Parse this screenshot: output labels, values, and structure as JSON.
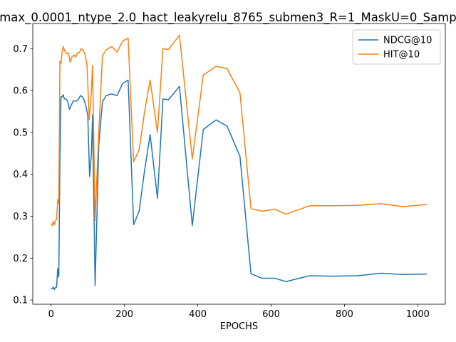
{
  "chart_data": {
    "type": "line",
    "title": "max_0.0001_ntype_2.0_hact_leakyrelu_8765_submen3_R=1_MaskU=0_Samp",
    "xlabel": "EPOCHS",
    "ylabel": "",
    "xlim": [
      -50,
      1075
    ],
    "ylim": [
      0.09,
      0.76
    ],
    "xticks": [
      0,
      200,
      400,
      600,
      800,
      1000
    ],
    "yticks": [
      0.1,
      0.2,
      0.3,
      0.4,
      0.5,
      0.6,
      0.7
    ],
    "grid": false,
    "legend": "top-right",
    "series": [
      {
        "name": "NDCG@10",
        "color": "#1f77b4",
        "points": [
          [
            0,
            0.128
          ],
          [
            3,
            0.127
          ],
          [
            6,
            0.131
          ],
          [
            9,
            0.125
          ],
          [
            12,
            0.13
          ],
          [
            15,
            0.131
          ],
          [
            18,
            0.175
          ],
          [
            21,
            0.155
          ],
          [
            24,
            0.44
          ],
          [
            27,
            0.585
          ],
          [
            30,
            0.585
          ],
          [
            33,
            0.59
          ],
          [
            36,
            0.58
          ],
          [
            40,
            0.58
          ],
          [
            45,
            0.575
          ],
          [
            50,
            0.555
          ],
          [
            55,
            0.565
          ],
          [
            60,
            0.575
          ],
          [
            65,
            0.575
          ],
          [
            70,
            0.575
          ],
          [
            75,
            0.58
          ],
          [
            80,
            0.588
          ],
          [
            85,
            0.585
          ],
          [
            90,
            0.578
          ],
          [
            95,
            0.563
          ],
          [
            100,
            0.54
          ],
          [
            105,
            0.395
          ],
          [
            110,
            0.45
          ],
          [
            113,
            0.542
          ],
          [
            120,
            0.135
          ],
          [
            130,
            0.47
          ],
          [
            140,
            0.573
          ],
          [
            150,
            0.588
          ],
          [
            165,
            0.592
          ],
          [
            180,
            0.588
          ],
          [
            195,
            0.617
          ],
          [
            210,
            0.625
          ],
          [
            225,
            0.28
          ],
          [
            240,
            0.312
          ],
          [
            255,
            0.41
          ],
          [
            270,
            0.495
          ],
          [
            290,
            0.343
          ],
          [
            305,
            0.58
          ],
          [
            320,
            0.578
          ],
          [
            350,
            0.61
          ],
          [
            385,
            0.278
          ],
          [
            415,
            0.507
          ],
          [
            450,
            0.53
          ],
          [
            480,
            0.515
          ],
          [
            515,
            0.443
          ],
          [
            545,
            0.163
          ],
          [
            575,
            0.152
          ],
          [
            610,
            0.152
          ],
          [
            640,
            0.144
          ],
          [
            705,
            0.158
          ],
          [
            770,
            0.157
          ],
          [
            835,
            0.158
          ],
          [
            900,
            0.164
          ],
          [
            960,
            0.161
          ],
          [
            1025,
            0.162
          ]
        ]
      },
      {
        "name": "HIT@10",
        "color": "#ff7f0e",
        "points": [
          [
            0,
            0.282
          ],
          [
            3,
            0.278
          ],
          [
            6,
            0.288
          ],
          [
            9,
            0.28
          ],
          [
            12,
            0.29
          ],
          [
            15,
            0.292
          ],
          [
            18,
            0.34
          ],
          [
            21,
            0.33
          ],
          [
            24,
            0.67
          ],
          [
            27,
            0.665
          ],
          [
            30,
            0.69
          ],
          [
            33,
            0.705
          ],
          [
            37,
            0.695
          ],
          [
            42,
            0.688
          ],
          [
            47,
            0.69
          ],
          [
            52,
            0.668
          ],
          [
            57,
            0.68
          ],
          [
            62,
            0.685
          ],
          [
            67,
            0.68
          ],
          [
            72,
            0.69
          ],
          [
            77,
            0.69
          ],
          [
            82,
            0.7
          ],
          [
            88,
            0.695
          ],
          [
            93,
            0.685
          ],
          [
            98,
            0.66
          ],
          [
            104,
            0.53
          ],
          [
            110,
            0.6
          ],
          [
            113,
            0.66
          ],
          [
            120,
            0.29
          ],
          [
            130,
            0.5
          ],
          [
            140,
            0.683
          ],
          [
            150,
            0.697
          ],
          [
            165,
            0.705
          ],
          [
            180,
            0.692
          ],
          [
            195,
            0.718
          ],
          [
            210,
            0.725
          ],
          [
            225,
            0.43
          ],
          [
            240,
            0.458
          ],
          [
            255,
            0.55
          ],
          [
            270,
            0.625
          ],
          [
            290,
            0.5
          ],
          [
            305,
            0.7
          ],
          [
            320,
            0.698
          ],
          [
            350,
            0.732
          ],
          [
            385,
            0.437
          ],
          [
            415,
            0.637
          ],
          [
            450,
            0.658
          ],
          [
            480,
            0.652
          ],
          [
            515,
            0.595
          ],
          [
            545,
            0.318
          ],
          [
            575,
            0.312
          ],
          [
            610,
            0.317
          ],
          [
            640,
            0.305
          ],
          [
            705,
            0.325
          ],
          [
            770,
            0.325
          ],
          [
            835,
            0.326
          ],
          [
            900,
            0.33
          ],
          [
            960,
            0.323
          ],
          [
            1025,
            0.328
          ]
        ]
      }
    ]
  }
}
